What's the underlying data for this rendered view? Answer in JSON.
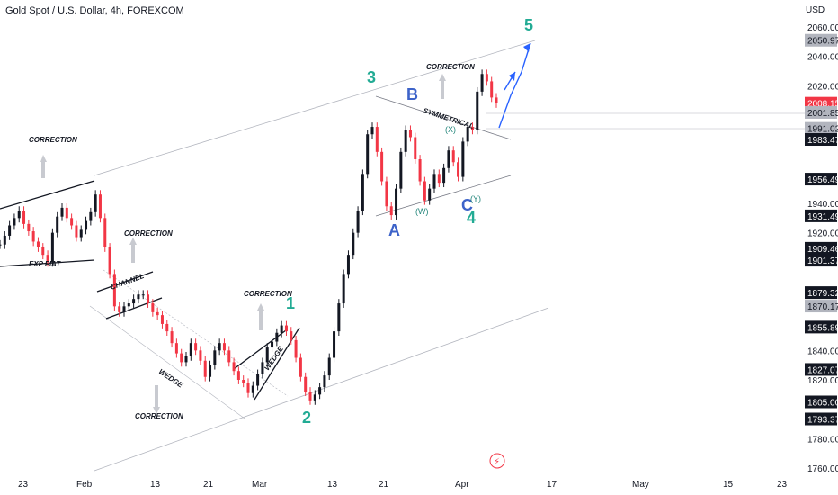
{
  "header": {
    "title": "Gold Spot / U.S. Dollar, 4h, FOREXCOM",
    "currency": "USD"
  },
  "chart_data": {
    "type": "line",
    "ylim": [
      1760,
      2060
    ],
    "y_ticks": [
      "2060.00",
      "2040.00",
      "2020.00",
      "1940.00",
      "1920.00",
      "1840.00",
      "1820.00",
      "1780.00",
      "1760.00"
    ],
    "x_ticks": [
      "23",
      "Feb",
      "13",
      "21",
      "Mar",
      "13",
      "21",
      "Apr",
      "17",
      "May",
      "15",
      "23"
    ],
    "price_labels": [
      {
        "text": "2050.97",
        "value": 2050.97,
        "style": "gray"
      },
      {
        "text": "2008.15",
        "value": 2008.15,
        "style": "red"
      },
      {
        "text": "2001.85",
        "value": 2001.85,
        "style": "gray"
      },
      {
        "text": "1991.02",
        "value": 1991.02,
        "style": "gray"
      },
      {
        "text": "1983.47",
        "value": 1983.47,
        "style": "dark"
      },
      {
        "text": "1956.49",
        "value": 1956.49,
        "style": "dark"
      },
      {
        "text": "1931.49",
        "value": 1931.49,
        "style": "dark"
      },
      {
        "text": "1909.46",
        "value": 1909.46,
        "style": "dark"
      },
      {
        "text": "1901.37",
        "value": 1901.37,
        "style": "dark"
      },
      {
        "text": "1879.32",
        "value": 1879.32,
        "style": "dark"
      },
      {
        "text": "1870.17",
        "value": 1870.17,
        "style": "gray"
      },
      {
        "text": "1855.89",
        "value": 1855.89,
        "style": "dark"
      },
      {
        "text": "1827.07",
        "value": 1827.07,
        "style": "dark"
      },
      {
        "text": "1805.00",
        "value": 1805.0,
        "style": "dark"
      },
      {
        "text": "1793.37",
        "value": 1793.37,
        "style": "dark"
      }
    ],
    "series": [
      {
        "values": [
          1912,
          1918,
          1925,
          1930,
          1935,
          1926,
          1921,
          1914,
          1910,
          1905,
          1900,
          1920,
          1931,
          1937,
          1930,
          1925,
          1917,
          1922,
          1928,
          1934,
          1946,
          1930,
          1910,
          1892,
          1870,
          1866,
          1870,
          1872,
          1875,
          1878,
          1878,
          1872,
          1866,
          1864,
          1858,
          1853,
          1845,
          1838,
          1832,
          1836,
          1845,
          1840,
          1833,
          1822,
          1830,
          1840,
          1845,
          1840,
          1832,
          1826,
          1820,
          1818,
          1811,
          1816,
          1824,
          1832,
          1842,
          1846,
          1852,
          1857,
          1853,
          1847,
          1835,
          1822,
          1812,
          1806,
          1810,
          1815,
          1823,
          1835,
          1853,
          1872,
          1892,
          1905,
          1920,
          1935,
          1960,
          1987,
          1992,
          1975,
          1955,
          1938,
          1932,
          1950,
          1975,
          1990,
          1985,
          1970,
          1955,
          1942,
          1950,
          1960,
          1954,
          1964,
          1976,
          1968,
          1958,
          1982,
          1992,
          1990,
          2016,
          2028,
          2023,
          2012,
          2008
        ]
      }
    ],
    "annotations": {
      "notes": [
        "CORRECTION",
        "CORRECTION",
        "CORRECTION",
        "CORRECTION",
        "CORRECTION",
        "EXP FIAT",
        "CHANNEL",
        "WEDGE",
        "WEDGE",
        "SYMMETRICAL"
      ],
      "waves": [
        "1",
        "2",
        "3",
        "4",
        "5",
        "A",
        "B",
        "C"
      ],
      "sub_waves": [
        "(W)",
        "(X)",
        "(Y)"
      ]
    }
  }
}
